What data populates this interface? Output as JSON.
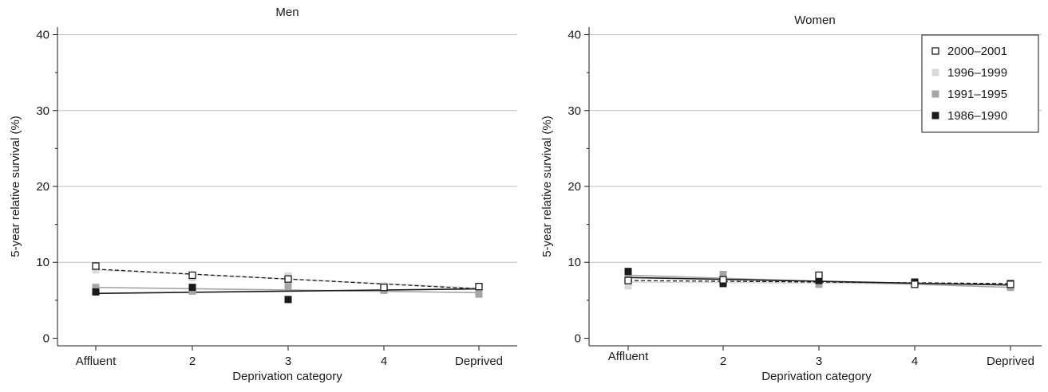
{
  "chart_data": [
    {
      "type": "scatter",
      "title": "Men",
      "xlabel": "Deprivation category",
      "ylabel": "5-year relative survival (%)",
      "categories": [
        "Affluent",
        "2",
        "3",
        "4",
        "Deprived"
      ],
      "yticks": [
        "0",
        "10",
        "20",
        "30",
        "40"
      ],
      "ylim": [
        -1,
        41
      ],
      "grid": "horizontal",
      "legend": "none",
      "series": [
        {
          "name": "2000–2001",
          "values": [
            9.5,
            8.3,
            7.8,
            6.7,
            6.8
          ],
          "trend": [
            9.1,
            8.45,
            7.8,
            7.15,
            6.5
          ]
        },
        {
          "name": "1996–1999",
          "values": [
            9.0,
            8.0,
            8.2,
            6.9,
            6.4
          ],
          "trend": [
            9.0,
            8.4,
            7.8,
            7.2,
            6.6
          ]
        },
        {
          "name": "1991–1995",
          "values": [
            6.7,
            6.2,
            6.8,
            6.3,
            5.8
          ],
          "trend": [
            6.7,
            6.5,
            6.35,
            6.2,
            6.0
          ]
        },
        {
          "name": "1986–1990",
          "values": [
            6.1,
            6.7,
            5.1,
            6.7,
            6.8
          ],
          "trend": [
            5.9,
            6.05,
            6.2,
            6.35,
            6.5
          ]
        }
      ]
    },
    {
      "type": "scatter",
      "title": "Women",
      "xlabel": "Deprivation category",
      "ylabel": "5-year relative survival (%)",
      "categories": [
        "Affluent",
        "2",
        "3",
        "4",
        "Deprived"
      ],
      "yticks": [
        "0",
        "10",
        "20",
        "30",
        "40"
      ],
      "ylim": [
        -1,
        41
      ],
      "grid": "horizontal",
      "legend": "top-right",
      "series": [
        {
          "name": "2000–2001",
          "values": [
            7.6,
            7.7,
            8.3,
            7.1,
            7.1
          ],
          "trend": [
            7.6,
            7.5,
            7.4,
            7.3,
            7.2
          ]
        },
        {
          "name": "1996–1999",
          "values": [
            6.9,
            8.0,
            7.5,
            7.1,
            6.9
          ],
          "trend": [
            7.4,
            7.35,
            7.3,
            7.2,
            7.1
          ]
        },
        {
          "name": "1991–1995",
          "values": [
            8.3,
            8.4,
            7.1,
            7.2,
            6.7
          ],
          "trend": [
            8.3,
            7.9,
            7.5,
            7.1,
            6.7
          ]
        },
        {
          "name": "1986–1990",
          "values": [
            8.8,
            7.2,
            7.6,
            7.4,
            7.2
          ],
          "trend": [
            8.0,
            7.75,
            7.5,
            7.25,
            7.0
          ]
        }
      ]
    }
  ],
  "legend": {
    "items": [
      {
        "label": "2000–2001",
        "style": "open"
      },
      {
        "label": "1996–1999",
        "style": "light"
      },
      {
        "label": "1991–1995",
        "style": "mid"
      },
      {
        "label": "1986–1990",
        "style": "dark"
      }
    ]
  },
  "colors": {
    "open_stroke": "#1a1a1a",
    "light": "#d9d9d9",
    "mid": "#a6a6a6",
    "dark": "#1a1a1a",
    "grid": "#bfbfbf",
    "axis": "#1a1a1a"
  }
}
